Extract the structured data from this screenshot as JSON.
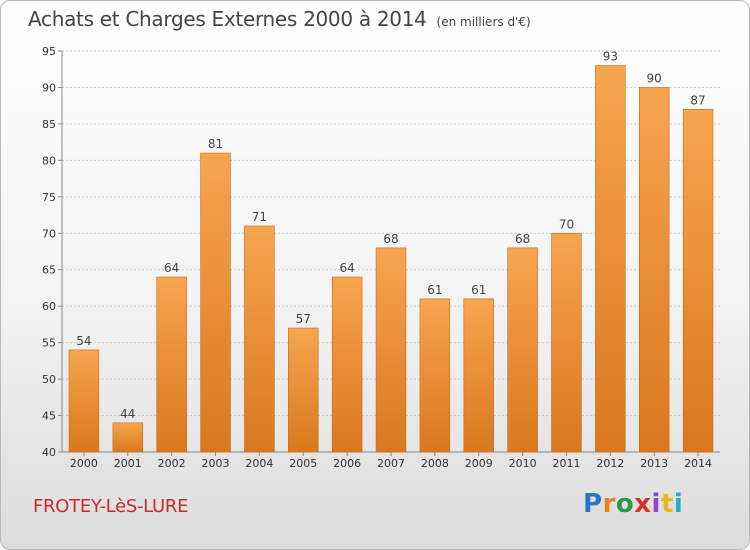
{
  "chart_data": {
    "type": "bar",
    "title": "Achats et Charges Externes 2000 à 2014",
    "subtitle": "(en milliers d'€)",
    "xlabel": "",
    "ylabel": "",
    "categories": [
      "2000",
      "2001",
      "2002",
      "2003",
      "2004",
      "2005",
      "2006",
      "2007",
      "2008",
      "2009",
      "2010",
      "2011",
      "2012",
      "2013",
      "2014"
    ],
    "values": [
      54,
      44,
      64,
      81,
      71,
      57,
      64,
      68,
      61,
      61,
      68,
      70,
      93,
      90,
      87
    ],
    "ylim": [
      40,
      95
    ],
    "yticks": [
      40,
      45,
      50,
      55,
      60,
      65,
      70,
      75,
      80,
      85,
      90,
      95
    ],
    "grid": "horizontal dashed",
    "bar_color_top": "#f7a54f",
    "bar_color_bottom": "#d9781e"
  },
  "footer": {
    "town": "FROTEY-LèS-LURE",
    "logo_letters": [
      "P",
      "r",
      "o",
      "x",
      "i",
      "t",
      "i"
    ],
    "logo_colors": [
      "#2a73c8",
      "#e8821e",
      "#2a9a4a",
      "#d8342a",
      "#8a4bc8",
      "#e8b81e",
      "#2aa8c8"
    ]
  }
}
